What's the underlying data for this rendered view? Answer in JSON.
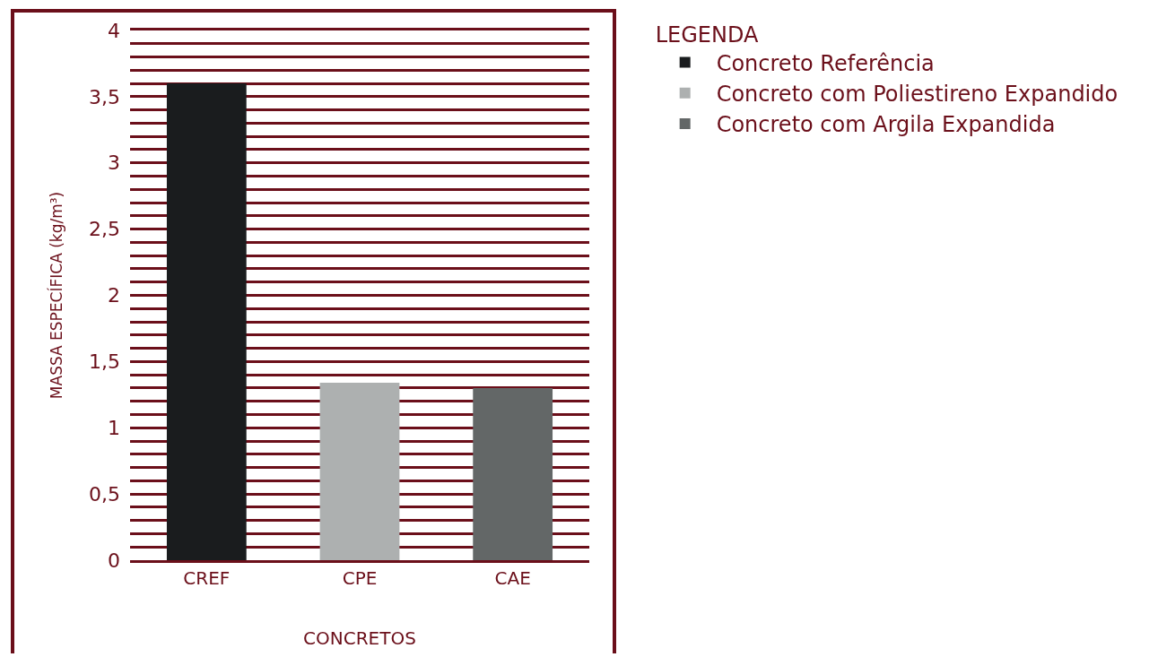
{
  "chart_data": {
    "type": "bar",
    "xlabel": "CONCRETOS",
    "ylabel": "MASSA ESPECÍFICA (kg/m³)",
    "legend_title": "LEGENDA",
    "categories": [
      "CREF",
      "CPE",
      "CAE"
    ],
    "series": [
      {
        "name": "Concreto Referência",
        "color": "#1a1c1e",
        "values": [
          3.6,
          null,
          null
        ]
      },
      {
        "name": "Concreto com Poliestireno Expandido",
        "color": "#adb0b0",
        "values": [
          null,
          1.34,
          null
        ]
      },
      {
        "name": "Concreto com Argila Expandida",
        "color": "#636767",
        "values": [
          null,
          null,
          1.3
        ]
      }
    ],
    "ylim": [
      0,
      4
    ],
    "yticks": [
      0,
      {
        "value": 0.1,
        "label": null
      },
      {
        "value": 0.2,
        "label": null
      },
      {
        "value": 0.3,
        "label": null
      },
      {
        "value": 0.4,
        "label": null
      },
      {
        "value": 0.5,
        "label": "0,5"
      },
      {
        "value": 0.6,
        "label": null
      },
      {
        "value": 0.7,
        "label": null
      },
      {
        "value": 0.8,
        "label": null
      },
      {
        "value": 0.9,
        "label": null
      },
      1,
      {
        "value": 1.1,
        "label": null
      },
      {
        "value": 1.2,
        "label": null
      },
      {
        "value": 1.3,
        "label": null
      },
      {
        "value": 1.4,
        "label": null
      },
      {
        "value": 1.5,
        "label": "1,5"
      },
      {
        "value": 1.6,
        "label": null
      },
      {
        "value": 1.7,
        "label": null
      },
      {
        "value": 1.8,
        "label": null
      },
      {
        "value": 1.9,
        "label": null
      },
      2,
      {
        "value": 2.1,
        "label": null
      },
      {
        "value": 2.2,
        "label": null
      },
      {
        "value": 2.3,
        "label": null
      },
      {
        "value": 2.4,
        "label": null
      },
      {
        "value": 2.5,
        "label": "2,5"
      },
      {
        "value": 2.6,
        "label": null
      },
      {
        "value": 2.7,
        "label": null
      },
      {
        "value": 2.8,
        "label": null
      },
      {
        "value": 2.9,
        "label": null
      },
      3,
      {
        "value": 3.1,
        "label": null
      },
      {
        "value": 3.2,
        "label": null
      },
      {
        "value": 3.3,
        "label": null
      },
      {
        "value": 3.4,
        "label": null
      },
      {
        "value": 3.5,
        "label": "3,5"
      },
      {
        "value": 3.6,
        "label": null
      },
      {
        "value": 3.7,
        "label": null
      },
      {
        "value": 3.8,
        "label": null
      },
      {
        "value": 3.9,
        "label": null
      },
      4
    ],
    "grid": "y",
    "legend": "right"
  }
}
